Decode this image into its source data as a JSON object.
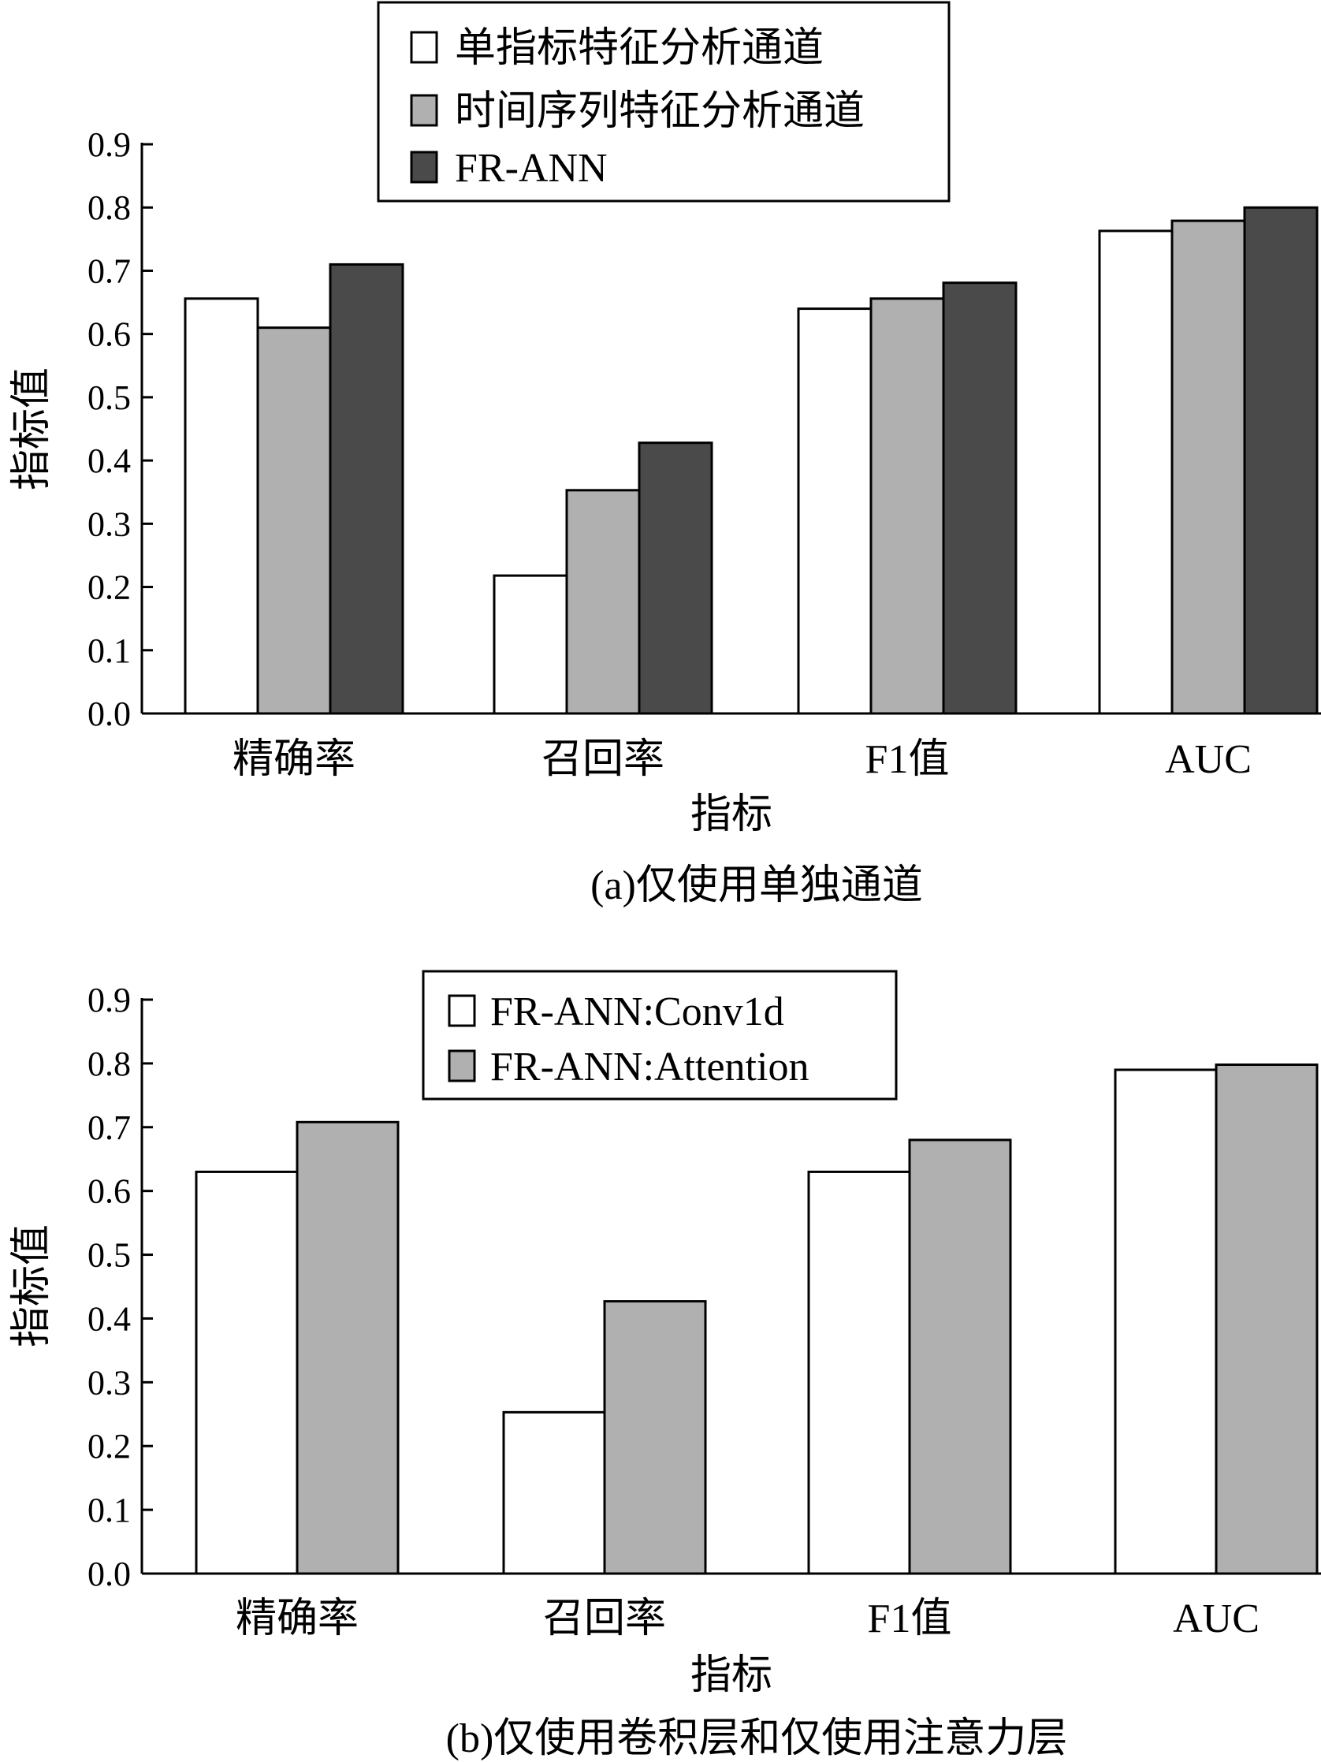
{
  "chart_data": [
    {
      "type": "bar",
      "categories": [
        "精确率",
        "召回率",
        "F1值",
        "AUC"
      ],
      "series": [
        {
          "name": "单指标特征分析通道",
          "values": [
            0.656,
            0.218,
            0.64,
            0.763
          ],
          "color": "#ffffff"
        },
        {
          "name": "时间序列特征分析通道",
          "values": [
            0.61,
            0.353,
            0.656,
            0.779
          ],
          "color": "#b0b0b0"
        },
        {
          "name": "FR-ANN",
          "values": [
            0.71,
            0.428,
            0.681,
            0.8
          ],
          "color": "#4a4a4a"
        }
      ],
      "xlabel": "指标",
      "ylabel": "指标值",
      "ylim": [
        0,
        0.9
      ],
      "yticks": [
        "0.0",
        "0.1",
        "0.2",
        "0.3",
        "0.4",
        "0.5",
        "0.6",
        "0.7",
        "0.8",
        "0.9"
      ],
      "caption": "(a)仅使用单独通道",
      "legend_position": "top-center",
      "grid": false
    },
    {
      "type": "bar",
      "categories": [
        "精确率",
        "召回率",
        "F1值",
        "AUC"
      ],
      "series": [
        {
          "name": "FR-ANN:Conv1d",
          "values": [
            0.63,
            0.253,
            0.63,
            0.79
          ],
          "color": "#ffffff"
        },
        {
          "name": "FR-ANN:Attention",
          "values": [
            0.708,
            0.427,
            0.68,
            0.798
          ],
          "color": "#b0b0b0"
        }
      ],
      "xlabel": "指标",
      "ylabel": "指标值",
      "ylim": [
        0,
        0.9
      ],
      "yticks": [
        "0.0",
        "0.1",
        "0.2",
        "0.3",
        "0.4",
        "0.5",
        "0.6",
        "0.7",
        "0.8",
        "0.9"
      ],
      "caption": "(b)仅使用卷积层和仅使用注意力层",
      "legend_position": "top-center",
      "grid": false
    }
  ]
}
